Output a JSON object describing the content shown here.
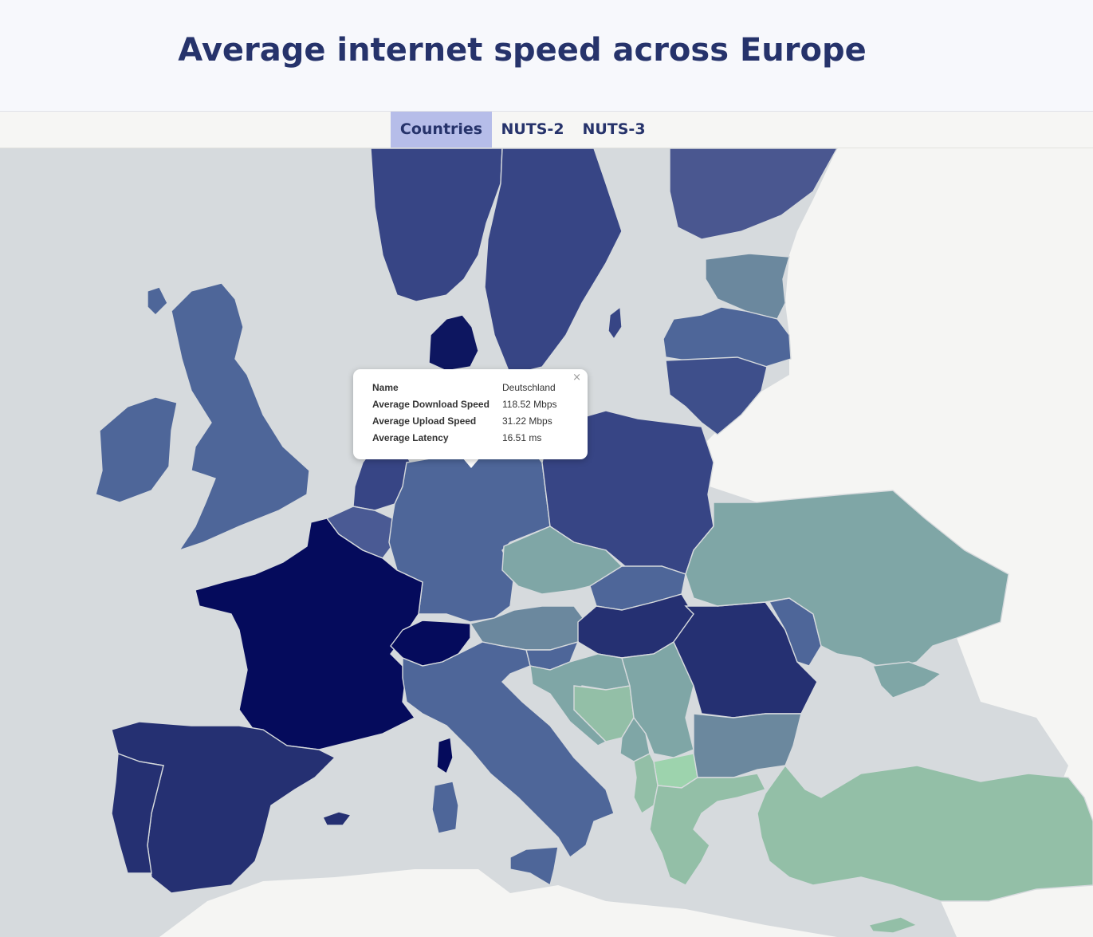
{
  "header": {
    "title": "Average internet speed across Europe"
  },
  "tabs": [
    {
      "label": "Countries",
      "active": true
    },
    {
      "label": "NUTS-2",
      "active": false
    },
    {
      "label": "NUTS-3",
      "active": false
    }
  ],
  "map": {
    "colors": {
      "sea": "#d6dadd",
      "non_data_land": "#f5f5f3",
      "darkest": "#050b5c",
      "dark": "#253072",
      "mid_dark": "#374585",
      "mid": "#4e6699",
      "slate": "#6b889e",
      "teal": "#7fa6a6",
      "green": "#93bfa7",
      "light_green": "#9dd3ad"
    }
  },
  "popup": {
    "close_glyph": "×",
    "rows": [
      {
        "key": "Name",
        "value": "Deutschland"
      },
      {
        "key": "Average Download Speed",
        "value": "118.52 Mbps"
      },
      {
        "key": "Average Upload Speed",
        "value": "31.22 Mbps"
      },
      {
        "key": "Average Latency",
        "value": "16.51 ms"
      }
    ]
  }
}
